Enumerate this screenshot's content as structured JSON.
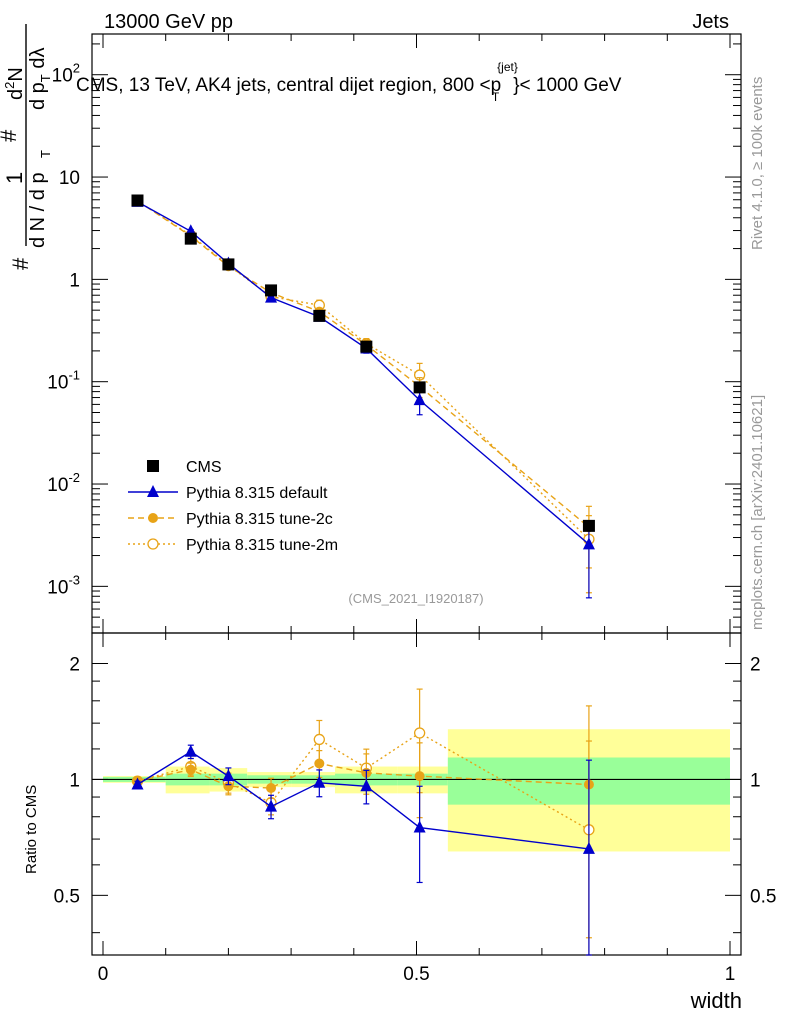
{
  "chart_data": {
    "type": "line",
    "header": {
      "left": "13000 GeV pp",
      "right": "Jets"
    },
    "title": {
      "prefix": "CMS, 13 TeV, AK4 jets, central dijet region, 800 <",
      "p": "p",
      "sup": "{jet}",
      "sub": "T",
      "suffix": "}< 1000 GeV"
    },
    "ylabel_main": {
      "hash1": "#",
      "one": "1",
      "dn": "d N / d p",
      "dn_sub": "T",
      "hash2": "#",
      "d2n": "d",
      "d2n_sup": "2",
      "d2n_tail": "N",
      "den": "d p",
      "den_sub": "T",
      "den_tail": " dλ"
    },
    "ylabel_ratio": "Ratio to CMS",
    "xlabel": "width",
    "side_labels": {
      "rivet": "Rivet 4.1.0, ≥ 100k events",
      "mcplots": "mcplots.cern.ch [arXiv:2401.10621]"
    },
    "watermark": "(CMS_2021_I1920187)",
    "x_ticks": [
      "0",
      "0.5",
      "1"
    ],
    "y_ticks_main": [
      {
        "base": "10",
        "exp": "-3"
      },
      {
        "base": "10",
        "exp": "-2"
      },
      {
        "base": "10",
        "exp": "-1"
      },
      {
        "base": "1",
        "exp": ""
      },
      {
        "base": "10",
        "exp": ""
      },
      {
        "base": "10",
        "exp": "2"
      }
    ],
    "y_ticks_ratio": [
      "0.5",
      "1",
      "2"
    ],
    "xlim": [
      0,
      1
    ],
    "ylim_main": [
      0.00035,
      250
    ],
    "ylim_ratio": [
      0.35,
      2.4
    ],
    "legend": [
      "CMS",
      "Pythia 8.315 default",
      "Pythia 8.315 tune-2c",
      "Pythia 8.315 tune-2m"
    ],
    "bins": [
      0,
      0.1,
      0.17,
      0.23,
      0.3,
      0.37,
      0.47,
      0.55,
      1.0
    ],
    "x": [
      0.055,
      0.14,
      0.2,
      0.268,
      0.345,
      0.42,
      0.505,
      0.775
    ],
    "cms": [
      5.9,
      2.5,
      1.4,
      0.78,
      0.44,
      0.22,
      0.088,
      0.0039
    ],
    "band_yellow_rel": [
      0.02,
      0.08,
      0.07,
      0.045,
      0.045,
      0.08,
      0.08,
      0.35
    ],
    "band_green_rel": [
      0.015,
      0.035,
      0.035,
      0.025,
      0.025,
      0.035,
      0.035,
      0.14
    ],
    "colors": {
      "cms": "#000000",
      "default": "#0000cc",
      "tune2c": "#e8a317",
      "tune2m": "#e8a317",
      "yellow": "#ffff99",
      "green": "#99ff99"
    },
    "series": [
      {
        "name": "Pythia 8.315 default",
        "key": "default",
        "dash": "",
        "marker": "triangle",
        "ratio": [
          0.97,
          1.18,
          1.02,
          0.85,
          0.98,
          0.96,
          0.75,
          0.66
        ],
        "err_rel": [
          0.02,
          0.04,
          0.05,
          0.07,
          0.08,
          0.1,
          0.28,
          0.7
        ]
      },
      {
        "name": "Pythia 8.315 tune-2c",
        "key": "tune2c",
        "dash": "6,4",
        "marker": "circle",
        "ratio": [
          0.99,
          1.06,
          0.96,
          0.95,
          1.1,
          1.04,
          1.02,
          0.97
        ],
        "err_rel": [
          0.02,
          0.04,
          0.05,
          0.06,
          0.08,
          0.12,
          0.22,
          0.6
        ]
      },
      {
        "name": "Pythia 8.315 tune-2m",
        "key": "tune2m",
        "dash": "2,3",
        "marker": "opencircle",
        "ratio": [
          0.99,
          1.08,
          0.98,
          0.87,
          1.27,
          1.07,
          1.32,
          0.74
        ],
        "err_rel": [
          0.02,
          0.05,
          0.06,
          0.07,
          0.12,
          0.12,
          0.3,
          0.7
        ]
      }
    ]
  }
}
